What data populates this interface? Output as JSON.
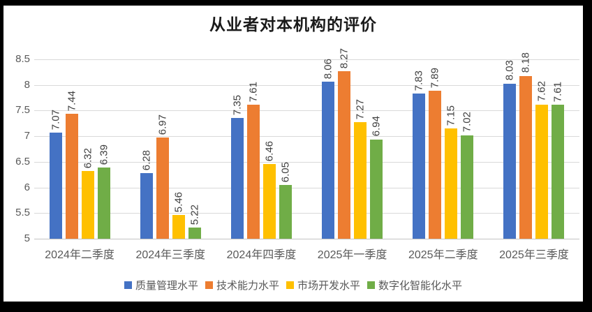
{
  "frame": {
    "background_color": "#000000",
    "surface_color": "#ffffff"
  },
  "chart_data": {
    "type": "bar",
    "title": "从业者对本机构的评价",
    "categories": [
      "2024年二季度",
      "2024年三季度",
      "2024年四季度",
      "2025年一季度",
      "2025年二季度",
      "2025年三季度"
    ],
    "series": [
      {
        "name": "质量管理水平",
        "color": "#4472C4",
        "values": [
          7.07,
          6.28,
          7.35,
          8.06,
          7.83,
          8.03
        ]
      },
      {
        "name": "技术能力水平",
        "color": "#ED7D31",
        "values": [
          7.44,
          6.97,
          7.61,
          8.27,
          7.89,
          8.18
        ]
      },
      {
        "name": "市场开发水平",
        "color": "#FFC000",
        "values": [
          6.32,
          5.46,
          6.46,
          7.27,
          7.15,
          7.62
        ]
      },
      {
        "name": "数字化智能化水平",
        "color": "#70AD47",
        "values": [
          6.39,
          5.22,
          6.05,
          6.94,
          7.02,
          7.61
        ]
      }
    ],
    "ylim": [
      5,
      8.5
    ],
    "ytick_step": 0.5,
    "ytick_labels": [
      "5",
      "5.5",
      "6",
      "6.5",
      "7",
      "7.5",
      "8",
      "8.5"
    ],
    "grid": true,
    "gridline_color": "#d9d9d9",
    "legend_position": "bottom",
    "data_labels": true,
    "data_label_rotation": 90,
    "data_label_decimals": 2
  }
}
